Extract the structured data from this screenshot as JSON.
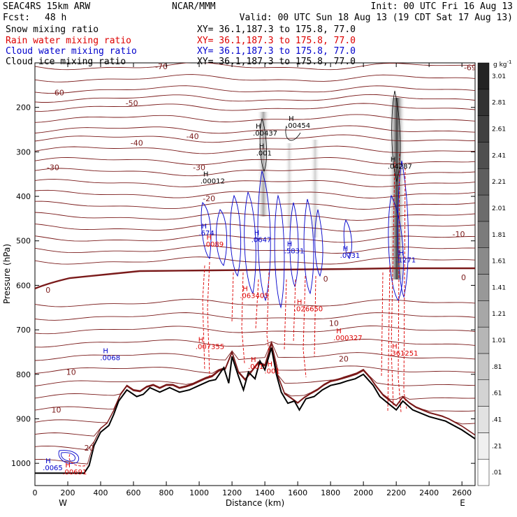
{
  "header": {
    "model": "SEAC4RS 15km ARW",
    "org": "NCAR/MMM",
    "init": "Init: 00 UTC Fri 16 Aug 13",
    "fcst_label": "Fcst:",
    "fcst_value": "48 h",
    "valid": "Valid: 00 UTC Sun 18 Aug 13 (19 CDT Sat 17 Aug 13)"
  },
  "fields": [
    {
      "name": "Snow mixing ratio",
      "xy": "XY=  36.1,187.3 to 175.8, 77.0",
      "color": "#000000"
    },
    {
      "name": "Rain water mixing ratio",
      "xy": "XY=  36.1,187.3 to 175.8, 77.0",
      "color": "#dd0000"
    },
    {
      "name": "Cloud water mixing ratio",
      "xy": "XY=  36.1,187.3 to 175.8, 77.0",
      "color": "#0000cc"
    },
    {
      "name": "Cloud ice mixing ratio",
      "xy": "XY=  36.1,187.3 to 175.8, 77.0",
      "color": "#000000"
    }
  ],
  "chart_data": {
    "type": "contour-cross-section",
    "xlabel": "Distance (km)",
    "ylabel": "Pressure (hPa)",
    "xlim": [
      0,
      2680
    ],
    "ylim": [
      1050,
      100
    ],
    "x_ticks": [
      0,
      200,
      400,
      600,
      800,
      1000,
      1200,
      1400,
      1600,
      1800,
      2000,
      2200,
      2400,
      2600
    ],
    "y_ticks": [
      200,
      300,
      400,
      500,
      600,
      700,
      800,
      900,
      1000
    ],
    "end_labels": {
      "west": "W",
      "east": "E"
    },
    "temperature_contour_labels": [
      {
        "x": 140,
        "p": 167,
        "text": "-60"
      },
      {
        "x": 590,
        "p": 190,
        "text": "-50"
      },
      {
        "x": 620,
        "p": 280,
        "text": "-40"
      },
      {
        "x": 960,
        "p": 265,
        "text": "-40"
      },
      {
        "x": 110,
        "p": 335,
        "text": "-30"
      },
      {
        "x": 1000,
        "p": 335,
        "text": "-30"
      },
      {
        "x": 1060,
        "p": 405,
        "text": "-20"
      },
      {
        "x": 2580,
        "p": 485,
        "text": "-10"
      },
      {
        "x": 80,
        "p": 610,
        "text": "0"
      },
      {
        "x": 1770,
        "p": 585,
        "text": "0"
      },
      {
        "x": 2610,
        "p": 582,
        "text": "0"
      },
      {
        "x": 1820,
        "p": 685,
        "text": "10"
      },
      {
        "x": 1880,
        "p": 765,
        "text": "20"
      },
      {
        "x": 220,
        "p": 795,
        "text": "10"
      },
      {
        "x": 130,
        "p": 880,
        "text": "10"
      },
      {
        "x": 330,
        "p": 965,
        "text": "20"
      },
      {
        "x": 770,
        "p": 108,
        "text": "-70"
      },
      {
        "x": 2650,
        "p": 110,
        "text": "-69"
      }
    ],
    "maxima_labels": [
      {
        "x": 1370,
        "p": 260,
        "text": ".00437",
        "color": "#000000"
      },
      {
        "x": 1570,
        "p": 243,
        "text": ".00454",
        "color": "#000000"
      },
      {
        "x": 1390,
        "p": 305,
        "text": ".001",
        "color": "#000000"
      },
      {
        "x": 1050,
        "p": 368,
        "text": ".00012",
        "color": "#000000"
      },
      {
        "x": 2190,
        "p": 335,
        "text": ".04287",
        "color": "#000000"
      },
      {
        "x": 1070,
        "p": 510,
        "text": ".0089",
        "color": "#dd0000"
      },
      {
        "x": 1290,
        "p": 625,
        "text": ".063405",
        "color": "#dd0000"
      },
      {
        "x": 1620,
        "p": 655,
        "text": ".026650",
        "color": "#dd0000"
      },
      {
        "x": 1020,
        "p": 740,
        "text": ".007355",
        "color": "#dd0000"
      },
      {
        "x": 1860,
        "p": 720,
        "text": ".000327",
        "color": "#dd0000"
      },
      {
        "x": 2200,
        "p": 755,
        "text": ".361251",
        "color": "#dd0000"
      },
      {
        "x": 1340,
        "p": 785,
        "text": ".001",
        "color": "#dd0000"
      },
      {
        "x": 1440,
        "p": 795,
        "text": ".001",
        "color": "#dd0000"
      },
      {
        "x": 1040,
        "p": 485,
        "text": ".674",
        "color": "#0000cc"
      },
      {
        "x": 1360,
        "p": 500,
        "text": ".0647",
        "color": "#0000cc"
      },
      {
        "x": 1560,
        "p": 525,
        "text": ".5831",
        "color": "#0000cc"
      },
      {
        "x": 1900,
        "p": 535,
        "text": ".0731",
        "color": "#0000cc"
      },
      {
        "x": 2240,
        "p": 545,
        "text": ".1271",
        "color": "#0000cc"
      },
      {
        "x": 440,
        "p": 765,
        "text": ".0068",
        "color": "#0000cc"
      },
      {
        "x": 90,
        "p": 1012,
        "text": ".0065",
        "color": "#0000cc"
      },
      {
        "x": 210,
        "p": 1022,
        "text": ".00691",
        "color": "#dd0000"
      }
    ],
    "terrain_profile": {
      "x": [
        0,
        300,
        330,
        360,
        400,
        450,
        480,
        510,
        560,
        620,
        660,
        700,
        760,
        820,
        880,
        940,
        1000,
        1060,
        1100,
        1150,
        1180,
        1200,
        1240,
        1270,
        1300,
        1340,
        1370,
        1400,
        1440,
        1470,
        1500,
        1540,
        1580,
        1610,
        1650,
        1700,
        1750,
        1800,
        1860,
        1900,
        1950,
        2000,
        2060,
        2100,
        2150,
        2200,
        2240,
        2300,
        2400,
        2500,
        2600,
        2680
      ],
      "p": [
        1022,
        1022,
        1005,
        960,
        930,
        915,
        890,
        860,
        835,
        850,
        845,
        830,
        840,
        830,
        840,
        835,
        825,
        815,
        812,
        785,
        820,
        760,
        805,
        835,
        795,
        810,
        770,
        790,
        740,
        800,
        840,
        865,
        860,
        880,
        855,
        850,
        835,
        825,
        820,
        815,
        810,
        800,
        825,
        850,
        865,
        880,
        860,
        880,
        895,
        905,
        925,
        945
      ]
    },
    "colorbar": {
      "unit": "g kg",
      "unit_exp": "-1",
      "levels": [
        ".01",
        ".21",
        ".41",
        ".61",
        ".81",
        "1.01",
        "1.21",
        "1.41",
        "1.61",
        "1.81",
        "2.01",
        "2.21",
        "2.41",
        "2.61",
        "2.81",
        "3.01"
      ]
    }
  }
}
